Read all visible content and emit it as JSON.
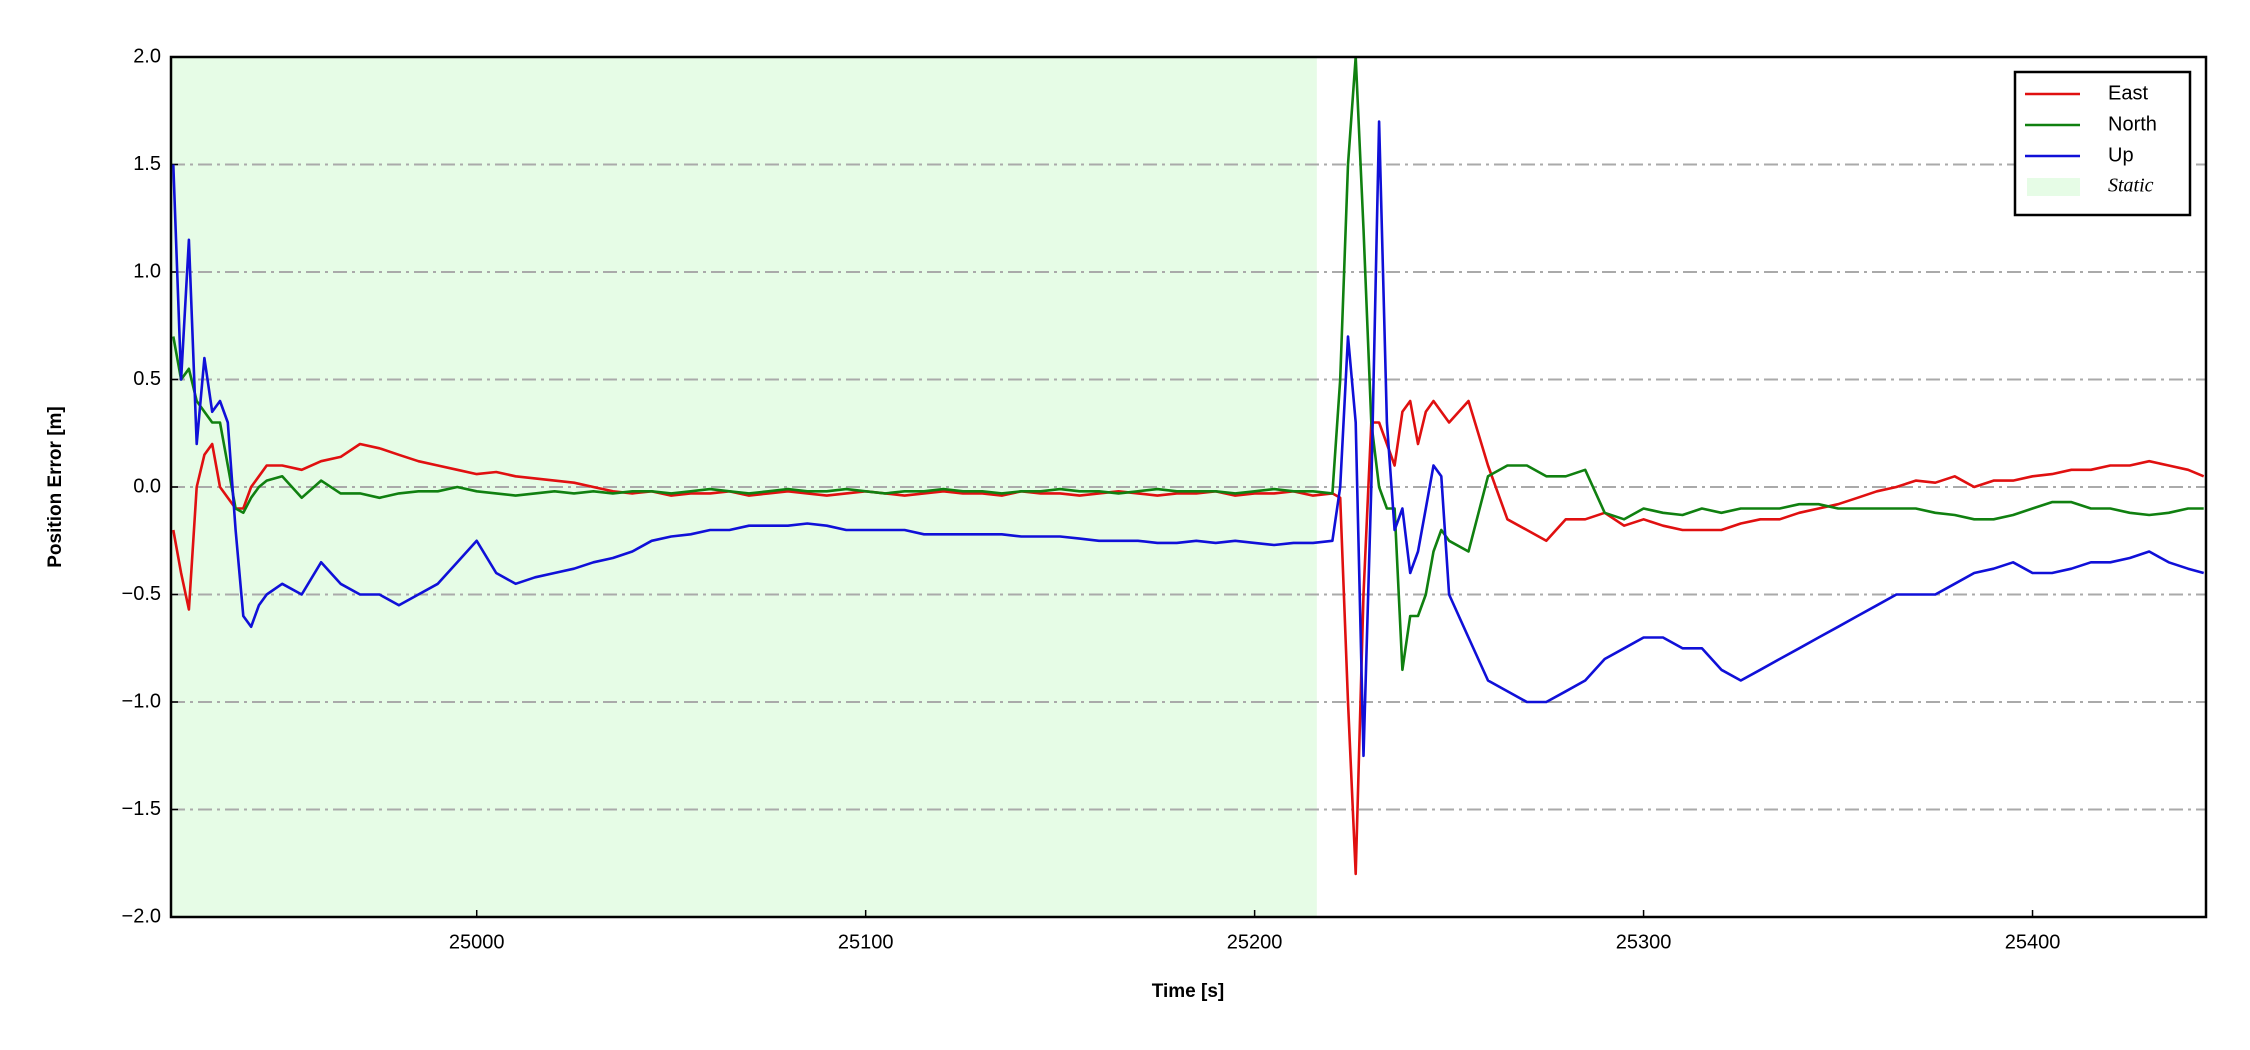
{
  "chart_data": {
    "type": "line",
    "xlabel": "Time [s]",
    "ylabel": "Position Error [m]",
    "xlim": [
      24921.4,
      25444.6
    ],
    "ylim": [
      -2,
      2
    ],
    "xticks": [
      25000,
      25100,
      25200,
      25300,
      25400
    ],
    "yticks": [
      {
        "value": -2,
        "label": "−2.0"
      },
      {
        "value": -1.5,
        "label": "−1.5"
      },
      {
        "value": -1,
        "label": "−1.0"
      },
      {
        "value": -0.5,
        "label": "−0.5"
      },
      {
        "value": 0,
        "label": "0.0"
      },
      0.5,
      {
        "value": 1,
        "label": "1.0"
      },
      1.5,
      {
        "value": 2,
        "label": "2.0"
      }
    ],
    "grid": "y",
    "legend": "upper right",
    "span": {
      "name": "Static",
      "color": "#e6fce6",
      "range": [
        24921.4,
        25216
      ]
    },
    "x": [
      24922,
      24924,
      24926,
      24928,
      24930,
      24932,
      24934,
      24936,
      24938,
      24940,
      24942,
      24944,
      24946,
      24950,
      24955,
      24960,
      24965,
      24970,
      24975,
      24980,
      24985,
      24990,
      24995,
      25000,
      25005,
      25010,
      25015,
      25020,
      25025,
      25030,
      25035,
      25040,
      25045,
      25050,
      25055,
      25060,
      25065,
      25070,
      25075,
      25080,
      25085,
      25090,
      25095,
      25100,
      25105,
      25110,
      25115,
      25120,
      25125,
      25130,
      25135,
      25140,
      25145,
      25150,
      25155,
      25160,
      25165,
      25170,
      25175,
      25180,
      25185,
      25190,
      25195,
      25200,
      25205,
      25210,
      25215,
      25220,
      25222,
      25224,
      25226,
      25228,
      25230,
      25232,
      25234,
      25236,
      25238,
      25240,
      25242,
      25244,
      25246,
      25248,
      25250,
      25255,
      25260,
      25265,
      25270,
      25275,
      25280,
      25285,
      25290,
      25295,
      25300,
      25305,
      25310,
      25315,
      25320,
      25325,
      25330,
      25335,
      25340,
      25345,
      25350,
      25355,
      25360,
      25365,
      25370,
      25375,
      25380,
      25385,
      25390,
      25395,
      25400,
      25405,
      25410,
      25415,
      25420,
      25425,
      25430,
      25435,
      25440,
      25444
    ],
    "series": [
      {
        "name": "East",
        "color": "#e01010",
        "values": [
          -0.2,
          -0.4,
          -0.57,
          0.0,
          0.15,
          0.2,
          0.0,
          -0.05,
          -0.1,
          -0.1,
          0.0,
          0.05,
          0.1,
          0.1,
          0.08,
          0.12,
          0.14,
          0.2,
          0.18,
          0.15,
          0.12,
          0.1,
          0.08,
          0.06,
          0.07,
          0.05,
          0.04,
          0.03,
          0.02,
          0.0,
          -0.02,
          -0.03,
          -0.02,
          -0.04,
          -0.03,
          -0.03,
          -0.02,
          -0.04,
          -0.03,
          -0.02,
          -0.03,
          -0.04,
          -0.03,
          -0.02,
          -0.03,
          -0.04,
          -0.03,
          -0.02,
          -0.03,
          -0.03,
          -0.04,
          -0.02,
          -0.03,
          -0.03,
          -0.04,
          -0.03,
          -0.02,
          -0.03,
          -0.04,
          -0.03,
          -0.03,
          -0.02,
          -0.04,
          -0.03,
          -0.03,
          -0.02,
          -0.04,
          -0.03,
          -0.05,
          -1.0,
          -1.8,
          -0.5,
          0.3,
          0.3,
          0.2,
          0.1,
          0.35,
          0.4,
          0.2,
          0.35,
          0.4,
          0.35,
          0.3,
          0.4,
          0.1,
          -0.15,
          -0.2,
          -0.25,
          -0.15,
          -0.15,
          -0.12,
          -0.18,
          -0.15,
          -0.18,
          -0.2,
          -0.2,
          -0.2,
          -0.17,
          -0.15,
          -0.15,
          -0.12,
          -0.1,
          -0.08,
          -0.05,
          -0.02,
          0.0,
          0.03,
          0.02,
          0.05,
          0.0,
          0.03,
          0.03,
          0.05,
          0.06,
          0.08,
          0.08,
          0.1,
          0.1,
          0.12,
          0.1,
          0.08,
          0.05
        ]
      },
      {
        "name": "North",
        "color": "#108010",
        "values": [
          0.7,
          0.5,
          0.55,
          0.4,
          0.35,
          0.3,
          0.3,
          0.1,
          -0.1,
          -0.12,
          -0.05,
          0.0,
          0.03,
          0.05,
          -0.05,
          0.03,
          -0.03,
          -0.03,
          -0.05,
          -0.03,
          -0.02,
          -0.02,
          0.0,
          -0.02,
          -0.03,
          -0.04,
          -0.03,
          -0.02,
          -0.03,
          -0.02,
          -0.03,
          -0.02,
          -0.02,
          -0.03,
          -0.02,
          -0.01,
          -0.02,
          -0.03,
          -0.02,
          -0.01,
          -0.02,
          -0.02,
          -0.01,
          -0.02,
          -0.03,
          -0.02,
          -0.02,
          -0.01,
          -0.02,
          -0.02,
          -0.03,
          -0.02,
          -0.02,
          -0.01,
          -0.02,
          -0.02,
          -0.03,
          -0.02,
          -0.01,
          -0.02,
          -0.02,
          -0.02,
          -0.03,
          -0.02,
          -0.01,
          -0.02,
          -0.02,
          -0.03,
          0.5,
          1.5,
          2.0,
          1.2,
          0.3,
          0.0,
          -0.1,
          -0.1,
          -0.85,
          -0.6,
          -0.6,
          -0.5,
          -0.3,
          -0.2,
          -0.25,
          -0.3,
          0.05,
          0.1,
          0.1,
          0.05,
          0.05,
          0.08,
          -0.12,
          -0.15,
          -0.1,
          -0.12,
          -0.13,
          -0.1,
          -0.12,
          -0.1,
          -0.1,
          -0.1,
          -0.08,
          -0.08,
          -0.1,
          -0.1,
          -0.1,
          -0.1,
          -0.1,
          -0.12,
          -0.13,
          -0.15,
          -0.15,
          -0.13,
          -0.1,
          -0.07,
          -0.07,
          -0.1,
          -0.1,
          -0.12,
          -0.13,
          -0.12,
          -0.1,
          -0.1
        ]
      },
      {
        "name": "Up",
        "color": "#1010d8",
        "values": [
          1.5,
          0.5,
          1.15,
          0.2,
          0.6,
          0.35,
          0.4,
          0.3,
          -0.2,
          -0.6,
          -0.65,
          -0.55,
          -0.5,
          -0.45,
          -0.5,
          -0.35,
          -0.45,
          -0.5,
          -0.5,
          -0.55,
          -0.5,
          -0.45,
          -0.35,
          -0.25,
          -0.4,
          -0.45,
          -0.42,
          -0.4,
          -0.38,
          -0.35,
          -0.33,
          -0.3,
          -0.25,
          -0.23,
          -0.22,
          -0.2,
          -0.2,
          -0.18,
          -0.18,
          -0.18,
          -0.17,
          -0.18,
          -0.2,
          -0.2,
          -0.2,
          -0.2,
          -0.22,
          -0.22,
          -0.22,
          -0.22,
          -0.22,
          -0.23,
          -0.23,
          -0.23,
          -0.24,
          -0.25,
          -0.25,
          -0.25,
          -0.26,
          -0.26,
          -0.25,
          -0.26,
          -0.25,
          -0.26,
          -0.27,
          -0.26,
          -0.26,
          -0.25,
          0.0,
          0.7,
          0.3,
          -1.25,
          0.0,
          1.7,
          0.3,
          -0.2,
          -0.1,
          -0.4,
          -0.3,
          -0.1,
          0.1,
          0.05,
          -0.5,
          -0.7,
          -0.9,
          -0.95,
          -1.0,
          -1.0,
          -0.95,
          -0.9,
          -0.8,
          -0.75,
          -0.7,
          -0.7,
          -0.75,
          -0.75,
          -0.85,
          -0.9,
          -0.85,
          -0.8,
          -0.75,
          -0.7,
          -0.65,
          -0.6,
          -0.55,
          -0.5,
          -0.5,
          -0.5,
          -0.45,
          -0.4,
          -0.38,
          -0.35,
          -0.4,
          -0.4,
          -0.38,
          -0.35,
          -0.35,
          -0.33,
          -0.3,
          -0.35,
          -0.38,
          -0.4
        ]
      }
    ]
  }
}
